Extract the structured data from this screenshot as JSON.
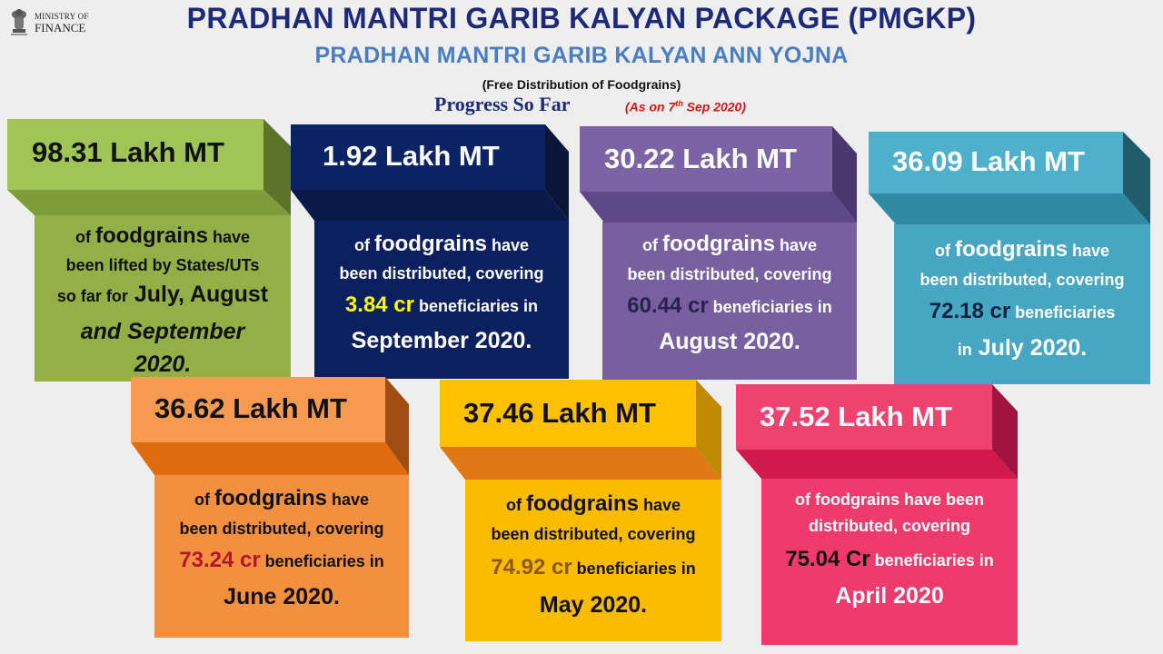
{
  "header": {
    "logo_line1": "MINISTRY OF",
    "logo_line2": "FINANCE",
    "title": "PRADHAN MANTRI GARIB KALYAN PACKAGE (PMGKP)",
    "subtitle": "PRADHAN MANTRI GARIB KALYAN ANN YOJNA",
    "description": "(Free Distribution of Foodgrains)",
    "progress": "Progress So Far",
    "as_on_prefix": "(As on 7",
    "as_on_sup": "th",
    "as_on_suffix": " Sep 2020)"
  },
  "tiles": [
    {
      "amount": "98.31 Lakh MT",
      "of": "of",
      "foodgrains": "foodgrains",
      "line1_rest": " have",
      "line2": "been lifted by States/UTs",
      "line3_pre": "so far for",
      "line3_big": " July, August",
      "line4": "and September",
      "line5": "2020.",
      "colors": {
        "back": "#92b045",
        "face": "#a0c556",
        "side": "#5d7428",
        "bottom": "#7f9c3a",
        "amount": "#111111",
        "body": "#111111"
      }
    },
    {
      "amount": "1.92 Lakh MT",
      "of": "of",
      "foodgrains": "foodgrains",
      "line1_rest": " have",
      "line2": "been distributed, covering",
      "number": "3.84 cr",
      "line3_rest": " beneficiaries in",
      "line4": "September 2020.",
      "colors": {
        "back": "#0c2060",
        "face": "#0b2466",
        "side": "#091638",
        "bottom": "#091a4a",
        "amount": "#ffffff",
        "body": "#ffffff",
        "number": "#ffff00"
      }
    },
    {
      "amount": "30.22 Lakh MT",
      "of": "of",
      "foodgrains": "foodgrains",
      "line1_rest": " have",
      "line2": "been distributed, covering",
      "number": "60.44 cr",
      "line3_rest": " beneficiaries in",
      "line4": "August 2020.",
      "colors": {
        "back": "#7860a0",
        "face": "#7b63a6",
        "side": "#4b3770",
        "bottom": "#5f4888",
        "amount": "#ffffff",
        "body": "#ffffff",
        "number": "#2a2050"
      }
    },
    {
      "amount": "36.09 Lakh MT",
      "of": "of",
      "foodgrains": "foodgrains",
      "line1_rest": " have",
      "line2": "been distributed, covering",
      "number": "72.18 cr",
      "line3_rest": " beneficiaries",
      "line4_pre": "in",
      "line4_big": " July 2020.",
      "colors": {
        "back": "#47a7c2",
        "face": "#4fb0cc",
        "side": "#215c6c",
        "bottom": "#308aa4",
        "amount": "#ffffff",
        "body": "#ffffff",
        "number": "#0e2440"
      }
    },
    {
      "amount": "36.62 Lakh MT",
      "of": "of",
      "foodgrains": "foodgrains",
      "line1_rest": " have",
      "line2": "been distributed, covering",
      "number": "73.24 cr",
      "line3_rest": " beneficiaries in",
      "line4": "June 2020.",
      "colors": {
        "back": "#f29040",
        "face": "#f59a4e",
        "side": "#a04d12",
        "bottom": "#e06c12",
        "amount": "#111111",
        "body": "#111111",
        "number": "#b0182a"
      }
    },
    {
      "amount": "37.46 Lakh MT",
      "of": "of",
      "foodgrains": "foodgrains",
      "line1_rest": " have",
      "line2": "been distributed, covering",
      "number": "74.92 cr",
      "line3_rest": " beneficiaries in",
      "line4": "May 2020.",
      "colors": {
        "back": "#fbbb00",
        "face": "#ffc000",
        "side": "#c08a00",
        "bottom": "#e07818",
        "amount": "#111111",
        "body": "#111111",
        "number": "#8a5a12"
      }
    },
    {
      "amount": "37.52 Lakh MT",
      "line1": "of foodgrains have been",
      "line2": "distributed, covering",
      "number": "75.04 Cr",
      "line3_rest": " beneficiaries in",
      "line4": "April 2020",
      "colors": {
        "back": "#ee3b6c",
        "face": "#f0426e",
        "side": "#a01440",
        "bottom": "#d01a4c",
        "amount": "#ffffff",
        "body": "#ffffff",
        "number": "#111111"
      }
    }
  ]
}
